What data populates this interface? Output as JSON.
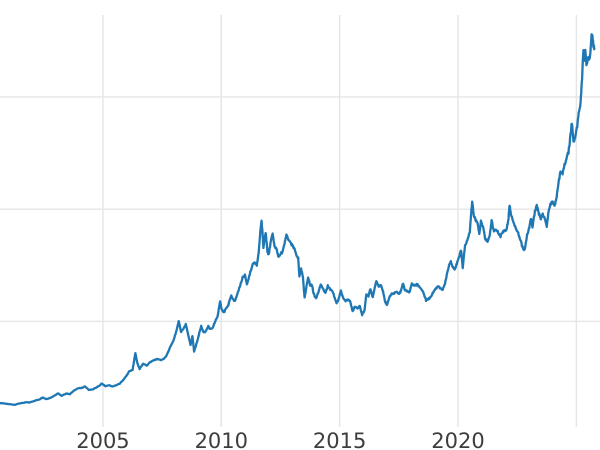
{
  "figure": {
    "background": "#ffffff",
    "grid_color": "#e5e5e5",
    "tick_label_color": "#3d3d3d",
    "tick_font_size": 21
  },
  "chart_data": {
    "type": "line",
    "title": "",
    "xlabel": "",
    "ylabel": "",
    "legend": "none",
    "grid": true,
    "xlim": [
      2000.65,
      2026.0
    ],
    "ylim": [
      60,
      3730
    ],
    "xticks": [
      {
        "value": 2005,
        "label": "2005"
      },
      {
        "value": 2010,
        "label": "2010"
      },
      {
        "value": 2015,
        "label": "2015"
      },
      {
        "value": 2020,
        "label": "2020"
      },
      {
        "value": 2025,
        "label": ""
      }
    ],
    "ygrid_values": [
      1000,
      2000,
      3000
    ],
    "ytick_labels_visible": false,
    "series": [
      {
        "name": "gold-price-usd-oz",
        "color": "#1f77b4",
        "line_width": 2.3,
        "noise_amplitude_frac": 0.008,
        "noise_seed": 7,
        "subpoints": 5,
        "points": [
          [
            2000.65,
            274
          ],
          [
            2000.9,
            268
          ],
          [
            2001.1,
            262
          ],
          [
            2001.3,
            258
          ],
          [
            2001.45,
            270
          ],
          [
            2001.6,
            274
          ],
          [
            2001.75,
            281
          ],
          [
            2001.9,
            277
          ],
          [
            2002.1,
            292
          ],
          [
            2002.3,
            304
          ],
          [
            2002.45,
            322
          ],
          [
            2002.6,
            308
          ],
          [
            2002.8,
            320
          ],
          [
            2003.0,
            345
          ],
          [
            2003.1,
            362
          ],
          [
            2003.25,
            337
          ],
          [
            2003.45,
            358
          ],
          [
            2003.6,
            352
          ],
          [
            2003.75,
            380
          ],
          [
            2003.95,
            405
          ],
          [
            2004.1,
            408
          ],
          [
            2004.25,
            420
          ],
          [
            2004.4,
            390
          ],
          [
            2004.55,
            394
          ],
          [
            2004.7,
            408
          ],
          [
            2004.85,
            428
          ],
          [
            2004.95,
            448
          ],
          [
            2005.1,
            424
          ],
          [
            2005.25,
            432
          ],
          [
            2005.4,
            421
          ],
          [
            2005.55,
            432
          ],
          [
            2005.7,
            445
          ],
          [
            2005.85,
            478
          ],
          [
            2006.0,
            516
          ],
          [
            2006.1,
            555
          ],
          [
            2006.25,
            568
          ],
          [
            2006.37,
            718
          ],
          [
            2006.45,
            630
          ],
          [
            2006.55,
            578
          ],
          [
            2006.7,
            625
          ],
          [
            2006.85,
            605
          ],
          [
            2007.0,
            638
          ],
          [
            2007.15,
            655
          ],
          [
            2007.3,
            668
          ],
          [
            2007.45,
            655
          ],
          [
            2007.55,
            665
          ],
          [
            2007.7,
            700
          ],
          [
            2007.85,
            780
          ],
          [
            2008.0,
            840
          ],
          [
            2008.1,
            910
          ],
          [
            2008.2,
            1005
          ],
          [
            2008.3,
            910
          ],
          [
            2008.4,
            930
          ],
          [
            2008.5,
            975
          ],
          [
            2008.6,
            880
          ],
          [
            2008.7,
            790
          ],
          [
            2008.78,
            870
          ],
          [
            2008.85,
            735
          ],
          [
            2008.95,
            800
          ],
          [
            2009.05,
            880
          ],
          [
            2009.15,
            960
          ],
          [
            2009.25,
            900
          ],
          [
            2009.35,
            915
          ],
          [
            2009.45,
            955
          ],
          [
            2009.55,
            930
          ],
          [
            2009.65,
            950
          ],
          [
            2009.75,
            1000
          ],
          [
            2009.85,
            1055
          ],
          [
            2009.95,
            1180
          ],
          [
            2010.0,
            1120
          ],
          [
            2010.1,
            1080
          ],
          [
            2010.2,
            1115
          ],
          [
            2010.3,
            1150
          ],
          [
            2010.42,
            1230
          ],
          [
            2010.5,
            1200
          ],
          [
            2010.58,
            1185
          ],
          [
            2010.7,
            1255
          ],
          [
            2010.8,
            1320
          ],
          [
            2010.9,
            1390
          ],
          [
            2011.0,
            1415
          ],
          [
            2011.08,
            1330
          ],
          [
            2011.2,
            1420
          ],
          [
            2011.33,
            1510
          ],
          [
            2011.42,
            1530
          ],
          [
            2011.5,
            1500
          ],
          [
            2011.58,
            1610
          ],
          [
            2011.65,
            1800
          ],
          [
            2011.7,
            1900
          ],
          [
            2011.74,
            1790
          ],
          [
            2011.78,
            1650
          ],
          [
            2011.83,
            1750
          ],
          [
            2011.88,
            1790
          ],
          [
            2011.95,
            1620
          ],
          [
            2012.0,
            1590
          ],
          [
            2012.1,
            1730
          ],
          [
            2012.17,
            1780
          ],
          [
            2012.25,
            1670
          ],
          [
            2012.33,
            1650
          ],
          [
            2012.42,
            1570
          ],
          [
            2012.5,
            1600
          ],
          [
            2012.58,
            1615
          ],
          [
            2012.67,
            1690
          ],
          [
            2012.75,
            1775
          ],
          [
            2012.83,
            1730
          ],
          [
            2012.92,
            1710
          ],
          [
            2013.0,
            1675
          ],
          [
            2013.08,
            1660
          ],
          [
            2013.17,
            1590
          ],
          [
            2013.25,
            1560
          ],
          [
            2013.3,
            1400
          ],
          [
            2013.37,
            1470
          ],
          [
            2013.45,
            1390
          ],
          [
            2013.52,
            1210
          ],
          [
            2013.6,
            1320
          ],
          [
            2013.67,
            1395
          ],
          [
            2013.75,
            1320
          ],
          [
            2013.83,
            1330
          ],
          [
            2013.9,
            1250
          ],
          [
            2014.0,
            1205
          ],
          [
            2014.1,
            1260
          ],
          [
            2014.2,
            1330
          ],
          [
            2014.3,
            1290
          ],
          [
            2014.4,
            1255
          ],
          [
            2014.5,
            1315
          ],
          [
            2014.6,
            1290
          ],
          [
            2014.7,
            1270
          ],
          [
            2014.78,
            1215
          ],
          [
            2014.87,
            1165
          ],
          [
            2014.95,
            1190
          ],
          [
            2015.05,
            1275
          ],
          [
            2015.15,
            1210
          ],
          [
            2015.25,
            1180
          ],
          [
            2015.35,
            1200
          ],
          [
            2015.45,
            1175
          ],
          [
            2015.55,
            1090
          ],
          [
            2015.65,
            1135
          ],
          [
            2015.75,
            1115
          ],
          [
            2015.85,
            1140
          ],
          [
            2015.95,
            1062
          ],
          [
            2016.05,
            1100
          ],
          [
            2016.13,
            1240
          ],
          [
            2016.22,
            1230
          ],
          [
            2016.3,
            1290
          ],
          [
            2016.4,
            1215
          ],
          [
            2016.5,
            1320
          ],
          [
            2016.55,
            1360
          ],
          [
            2016.65,
            1310
          ],
          [
            2016.75,
            1320
          ],
          [
            2016.83,
            1270
          ],
          [
            2016.92,
            1175
          ],
          [
            2017.0,
            1150
          ],
          [
            2017.1,
            1215
          ],
          [
            2017.2,
            1250
          ],
          [
            2017.3,
            1245
          ],
          [
            2017.4,
            1268
          ],
          [
            2017.5,
            1242
          ],
          [
            2017.58,
            1268
          ],
          [
            2017.68,
            1345
          ],
          [
            2017.75,
            1280
          ],
          [
            2017.85,
            1272
          ],
          [
            2017.95,
            1260
          ],
          [
            2018.05,
            1340
          ],
          [
            2018.15,
            1320
          ],
          [
            2018.25,
            1330
          ],
          [
            2018.35,
            1315
          ],
          [
            2018.45,
            1295
          ],
          [
            2018.55,
            1250
          ],
          [
            2018.65,
            1190
          ],
          [
            2018.75,
            1195
          ],
          [
            2018.85,
            1220
          ],
          [
            2018.95,
            1255
          ],
          [
            2019.05,
            1290
          ],
          [
            2019.15,
            1320
          ],
          [
            2019.25,
            1295
          ],
          [
            2019.35,
            1280
          ],
          [
            2019.45,
            1340
          ],
          [
            2019.52,
            1410
          ],
          [
            2019.62,
            1500
          ],
          [
            2019.7,
            1540
          ],
          [
            2019.78,
            1480
          ],
          [
            2019.87,
            1465
          ],
          [
            2019.95,
            1515
          ],
          [
            2020.05,
            1580
          ],
          [
            2020.13,
            1640
          ],
          [
            2020.2,
            1480
          ],
          [
            2020.3,
            1680
          ],
          [
            2020.4,
            1730
          ],
          [
            2020.5,
            1800
          ],
          [
            2020.56,
            1980
          ],
          [
            2020.6,
            2065
          ],
          [
            2020.67,
            1940
          ],
          [
            2020.75,
            1900
          ],
          [
            2020.83,
            1880
          ],
          [
            2020.9,
            1780
          ],
          [
            2020.97,
            1890
          ],
          [
            2021.05,
            1850
          ],
          [
            2021.15,
            1735
          ],
          [
            2021.25,
            1710
          ],
          [
            2021.35,
            1780
          ],
          [
            2021.42,
            1900
          ],
          [
            2021.52,
            1800
          ],
          [
            2021.6,
            1815
          ],
          [
            2021.7,
            1790
          ],
          [
            2021.8,
            1760
          ],
          [
            2021.88,
            1790
          ],
          [
            2021.97,
            1810
          ],
          [
            2022.05,
            1820
          ],
          [
            2022.13,
            1910
          ],
          [
            2022.18,
            2040
          ],
          [
            2022.25,
            1940
          ],
          [
            2022.33,
            1890
          ],
          [
            2022.42,
            1840
          ],
          [
            2022.5,
            1810
          ],
          [
            2022.58,
            1760
          ],
          [
            2022.67,
            1700
          ],
          [
            2022.75,
            1645
          ],
          [
            2022.83,
            1640
          ],
          [
            2022.92,
            1775
          ],
          [
            2023.0,
            1825
          ],
          [
            2023.08,
            1925
          ],
          [
            2023.15,
            1840
          ],
          [
            2023.25,
            1985
          ],
          [
            2023.33,
            2035
          ],
          [
            2023.42,
            1960
          ],
          [
            2023.5,
            1920
          ],
          [
            2023.58,
            1960
          ],
          [
            2023.67,
            1915
          ],
          [
            2023.75,
            1850
          ],
          [
            2023.83,
            1990
          ],
          [
            2023.92,
            2045
          ],
          [
            2024.0,
            2065
          ],
          [
            2024.08,
            2030
          ],
          [
            2024.15,
            2090
          ],
          [
            2024.25,
            2240
          ],
          [
            2024.33,
            2340
          ],
          [
            2024.42,
            2320
          ],
          [
            2024.5,
            2390
          ],
          [
            2024.58,
            2450
          ],
          [
            2024.67,
            2510
          ],
          [
            2024.75,
            2650
          ],
          [
            2024.81,
            2780
          ],
          [
            2024.88,
            2600
          ],
          [
            2024.95,
            2640
          ],
          [
            2025.02,
            2720
          ],
          [
            2025.1,
            2860
          ],
          [
            2025.17,
            2920
          ],
          [
            2025.23,
            3120
          ],
          [
            2025.3,
            3430
          ],
          [
            2025.34,
            3320
          ],
          [
            2025.38,
            3420
          ],
          [
            2025.43,
            3280
          ],
          [
            2025.5,
            3350
          ],
          [
            2025.56,
            3330
          ],
          [
            2025.6,
            3420
          ],
          [
            2025.64,
            3560
          ],
          [
            2025.68,
            3540
          ],
          [
            2025.72,
            3450
          ],
          [
            2025.76,
            3430
          ]
        ]
      }
    ]
  }
}
